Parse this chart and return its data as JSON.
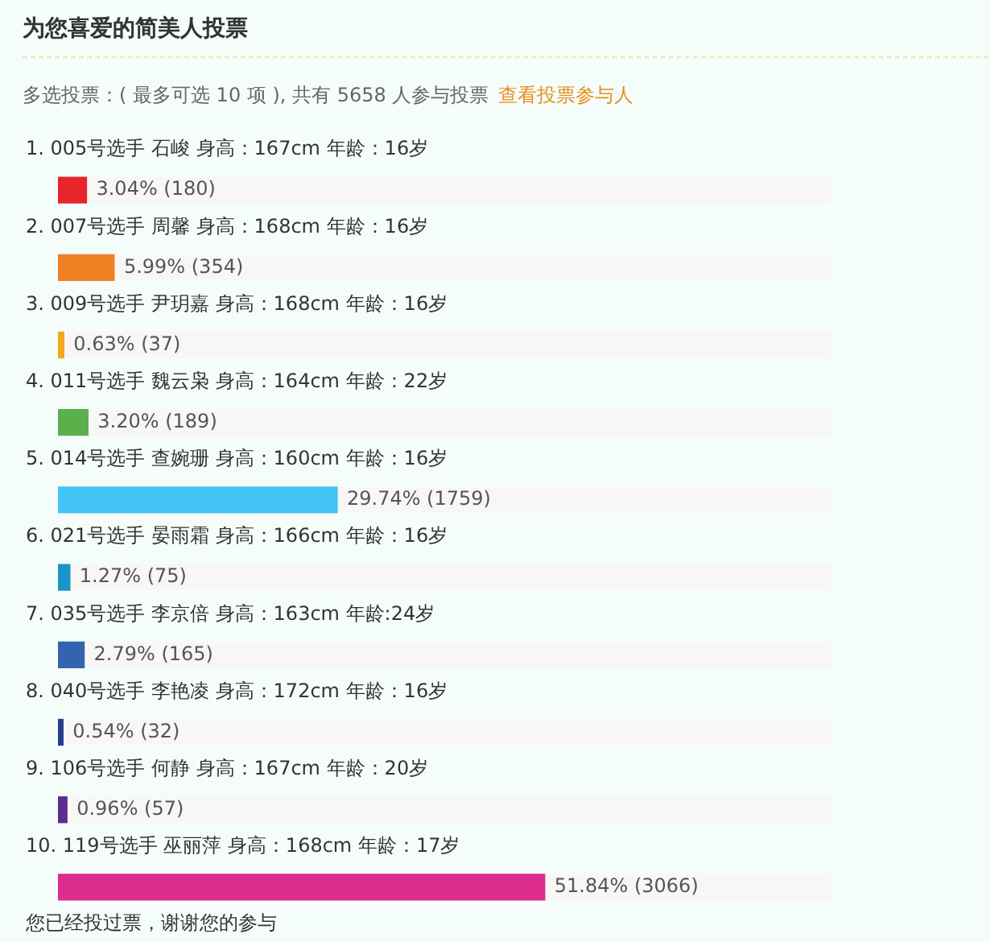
{
  "chart_data": {
    "type": "bar",
    "orientation": "horizontal",
    "title": "为您喜爱的简美人投票",
    "subtitle": "多选投票：( 最多可选 10 项 ), 共有 5658 人参与投票",
    "annotations": [
      "查看投票参与人",
      "您已经投过票，谢谢您的参与"
    ],
    "categories": [
      "1. 005号选手 石峻 身高：167cm 年龄：16岁",
      "2. 007号选手 周馨 身高：168cm 年龄：16岁",
      "3. 009号选手 尹玥嘉 身高：168cm 年龄：16岁",
      "4. 011号选手 魏云枭 身高：164cm 年龄：22岁",
      "5. 014号选手 查婉珊 身高：160cm 年龄：16岁",
      "6. 021号选手 晏雨霜 身高：166cm 年龄：16岁",
      "7. 035号选手 李京倍 身高：163cm 年龄:24岁",
      "8. 040号选手 李艳凌 身高：172cm 年龄：16岁",
      "9. 106号选手 何静 身高：167cm 年龄：20岁",
      "10. 119号选手 巫丽萍 身高：168cm 年龄：17岁"
    ],
    "values": [
      3.04,
      5.99,
      0.63,
      3.2,
      29.74,
      1.27,
      2.79,
      0.54,
      0.96,
      51.84
    ],
    "colors": [
      "#e8262a",
      "#f08024",
      "#f0a820",
      "#5cb04c",
      "#44c4f4",
      "#1a94c8",
      "#3464b0",
      "#283c8c",
      "#5c2c90",
      "#dc2c8c"
    ],
    "value_labels": [
      "3.04% (180)",
      "5.99% (354)",
      "0.63% (37)",
      "3.20% (189)",
      "29.74% (1759)",
      "1.27% (75)",
      "2.79% (165)",
      "0.54% (32)",
      "0.96% (57)",
      "51.84% (3066)"
    ],
    "tick_labels": "y"
  }
}
